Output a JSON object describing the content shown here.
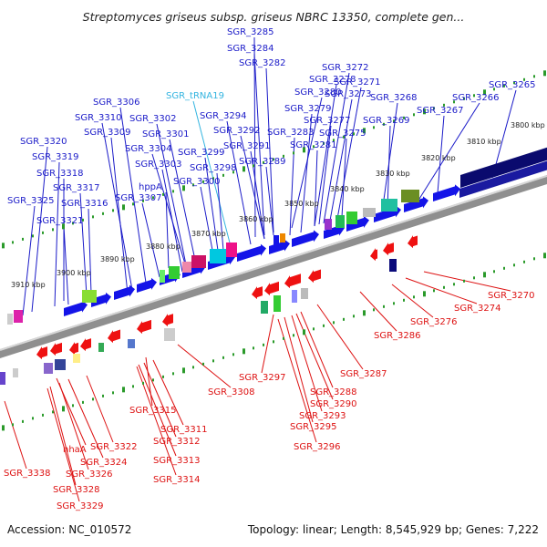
{
  "title": "Streptomyces griseus subsp. griseus NBRC 13350, complete gen...",
  "footer": {
    "accession": "Accession: NC_010572",
    "summary": "Topology: linear; Length: 8,545,929 bp; Genes: 7,222"
  },
  "colors": {
    "plus_label": "#1a1ac8",
    "minus_label": "#dd1111",
    "rna_label": "#33b4e0",
    "backbone": "#8a8a8a",
    "tick": "#2a9a2a"
  },
  "kbp_ticks": [
    "3800 kbp",
    "3810 kbp",
    "3820 kbp",
    "3830 kbp",
    "3840 kbp",
    "3850 kbp",
    "3860 kbp",
    "3870 kbp",
    "3880 kbp",
    "3890 kbp",
    "3900 kbp",
    "3910 kbp"
  ],
  "plus_labels": [
    "SGR_3285",
    "SGR_3284",
    "SGR_3282",
    "SGR_3272",
    "SGR_3278",
    "SGR_3271",
    "SGR_3280",
    "SGR_3273",
    "SGR_3268",
    "SGR_3266",
    "SGR_3265",
    "SGR_3306",
    "SGR_tRNA19",
    "SGR_3279",
    "SGR_3267",
    "SGR_3310",
    "SGR_3302",
    "SGR_3294",
    "SGR_3277",
    "SGR_3269",
    "SGR_3309",
    "SGR_3301",
    "SGR_3292",
    "SGR_3283",
    "SGR_3275",
    "SGR_3320",
    "SGR_3304",
    "SGR_3291",
    "SGR_3281",
    "SGR_3299",
    "SGR_3319",
    "SGR_3303",
    "SGR_3298",
    "SGR_3289",
    "SGR_3318",
    "SGR_3300",
    "SGR_3317",
    "hppA",
    "SGR_3316",
    "SGR_3307",
    "SGR_3325",
    "SGR_3321"
  ],
  "minus_labels": [
    "SGR_3270",
    "SGR_3274",
    "SGR_3276",
    "SGR_3286",
    "SGR_3287",
    "SGR_3297",
    "SGR_3308",
    "SGR_3288",
    "SGR_3290",
    "SGR_3293",
    "SGR_3315",
    "SGR_3295",
    "SGR_3311",
    "SGR_3312",
    "SGR_3296",
    "SGR_3322",
    "nhaA",
    "SGR_3324",
    "SGR_3313",
    "SGR_3338",
    "SGR_3326",
    "SGR_3314",
    "SGR_3328",
    "SGR_3329"
  ]
}
